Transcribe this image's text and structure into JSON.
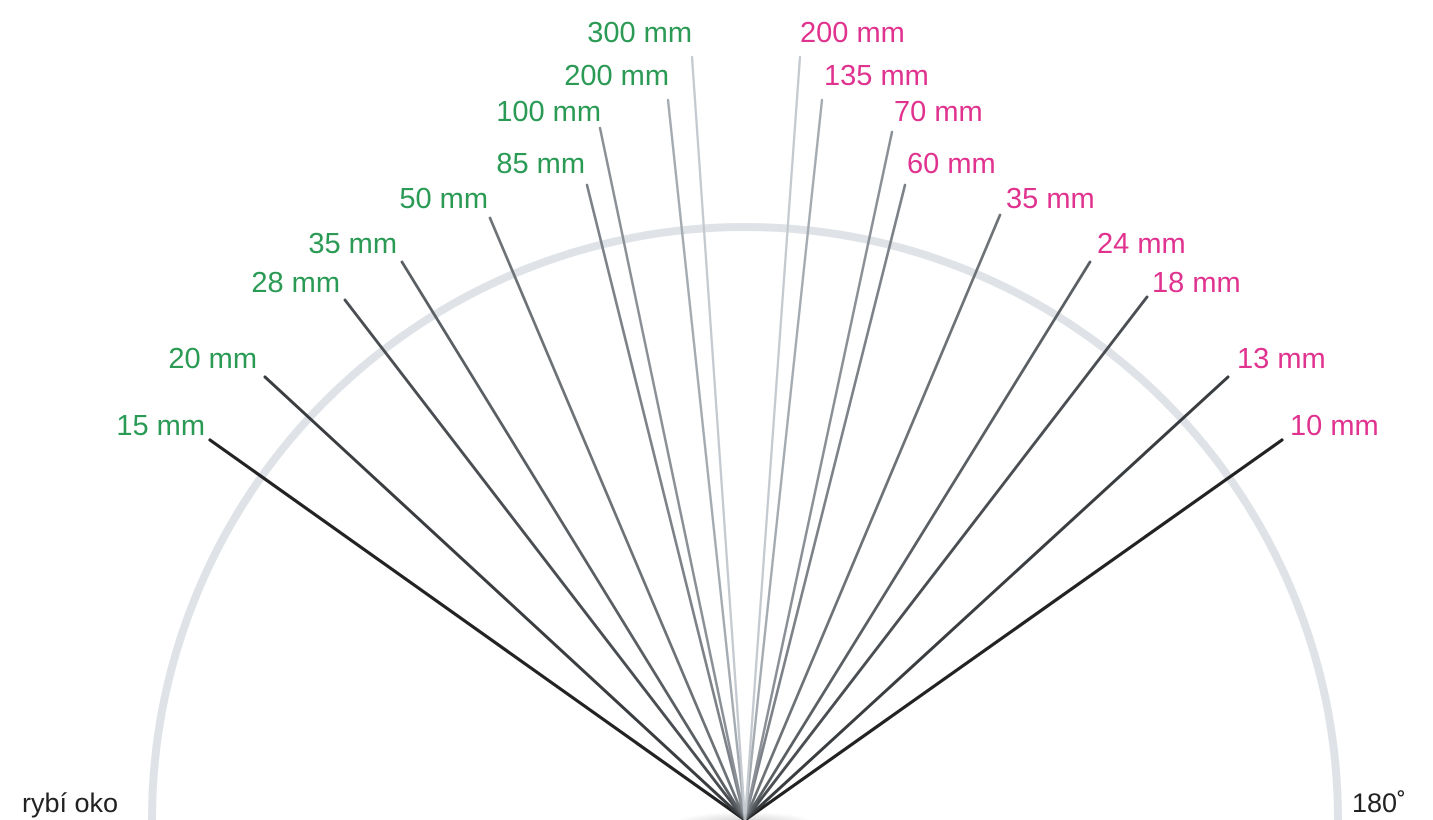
{
  "colors": {
    "full_frame": "#2a9a55",
    "aps_c": "#e0338f",
    "arc": "#dfe3e7",
    "ray_darkest": "#1f1f1f",
    "ray_lightest": "#c9cfd4"
  },
  "corner_labels": {
    "left": "rybí oko",
    "right": "180˚"
  },
  "left_lenses": [
    {
      "label": "15 mm"
    },
    {
      "label": "20 mm"
    },
    {
      "label": "28 mm"
    },
    {
      "label": "35 mm"
    },
    {
      "label": "50 mm"
    },
    {
      "label": "85 mm"
    },
    {
      "label": "100 mm"
    },
    {
      "label": "200 mm"
    },
    {
      "label": "300 mm"
    }
  ],
  "right_lenses": [
    {
      "label": "10 mm"
    },
    {
      "label": "13 mm"
    },
    {
      "label": "18 mm"
    },
    {
      "label": "24 mm"
    },
    {
      "label": "35 mm"
    },
    {
      "label": "60 mm"
    },
    {
      "label": "70 mm"
    },
    {
      "label": "135 mm"
    },
    {
      "label": "200 mm"
    }
  ]
}
